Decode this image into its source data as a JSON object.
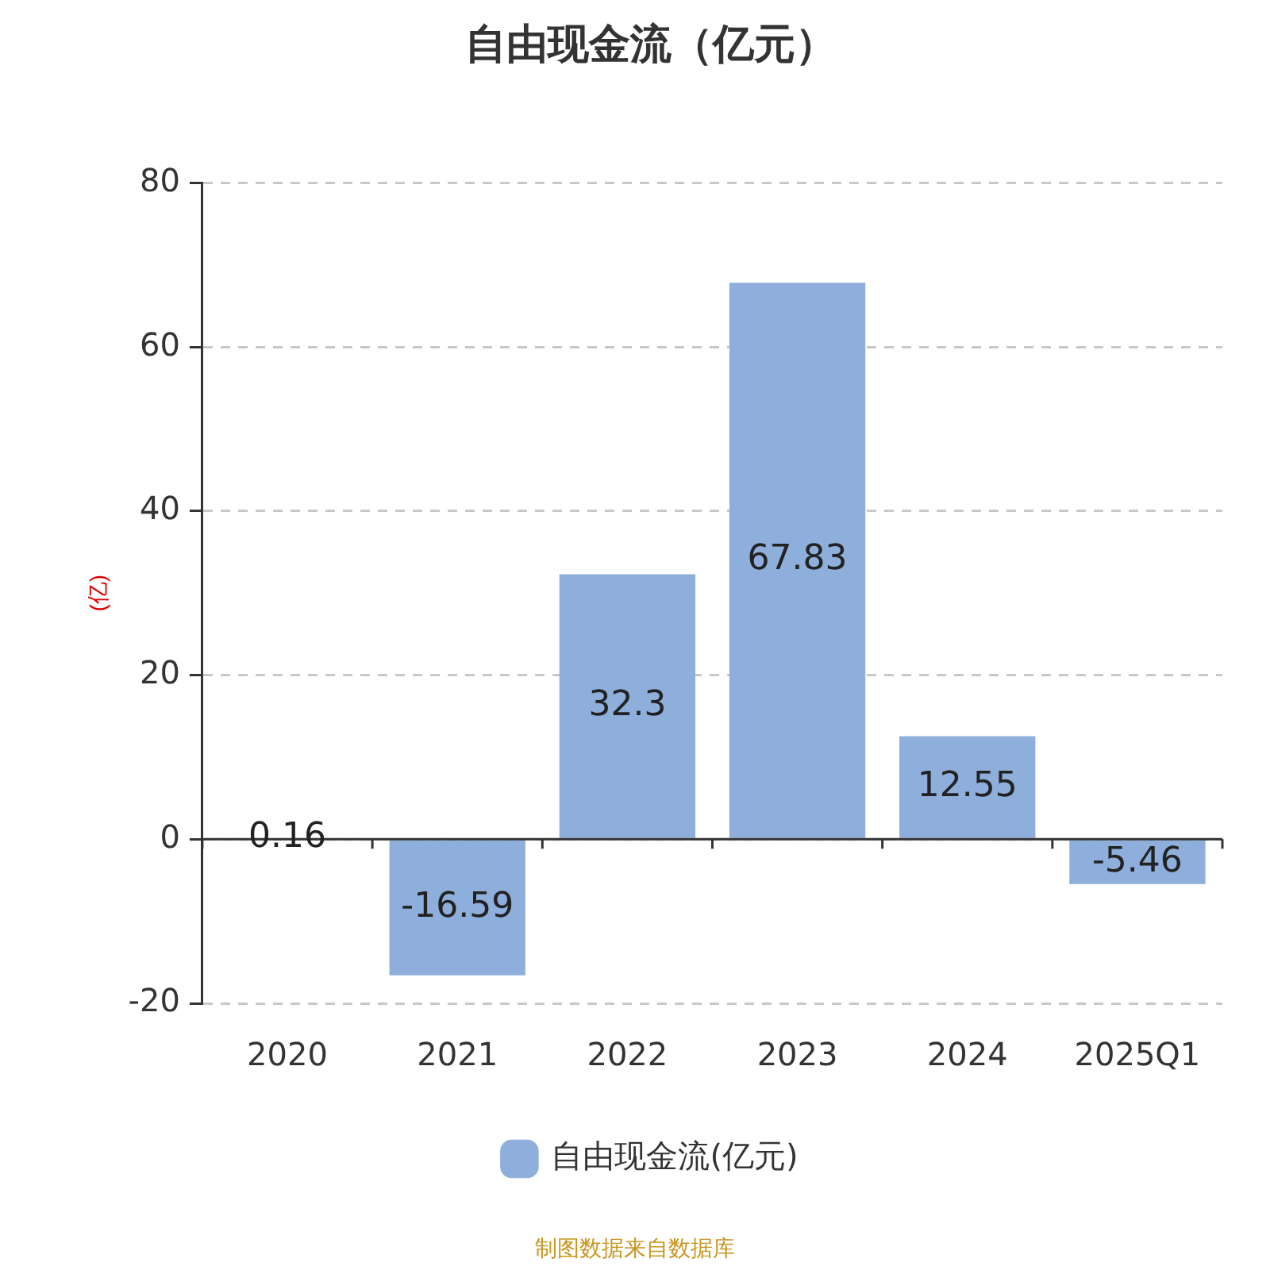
{
  "chart_data": {
    "type": "bar",
    "title": "自由现金流（亿元）",
    "ylabel": "(亿)",
    "categories": [
      "2020",
      "2021",
      "2022",
      "2023",
      "2024",
      "2025Q1"
    ],
    "series": [
      {
        "name": "自由现金流(亿元)",
        "color": "#8eaedb",
        "values": [
          0.16,
          -16.59,
          32.3,
          67.83,
          12.55,
          -5.46
        ]
      }
    ],
    "ylim": [
      -20,
      80
    ],
    "yticks": [
      -20,
      0,
      20,
      40,
      60,
      80
    ],
    "grid": "y",
    "legend": "bottom",
    "data_labels": true,
    "annotations": [
      "制图数据来自数据库"
    ]
  }
}
